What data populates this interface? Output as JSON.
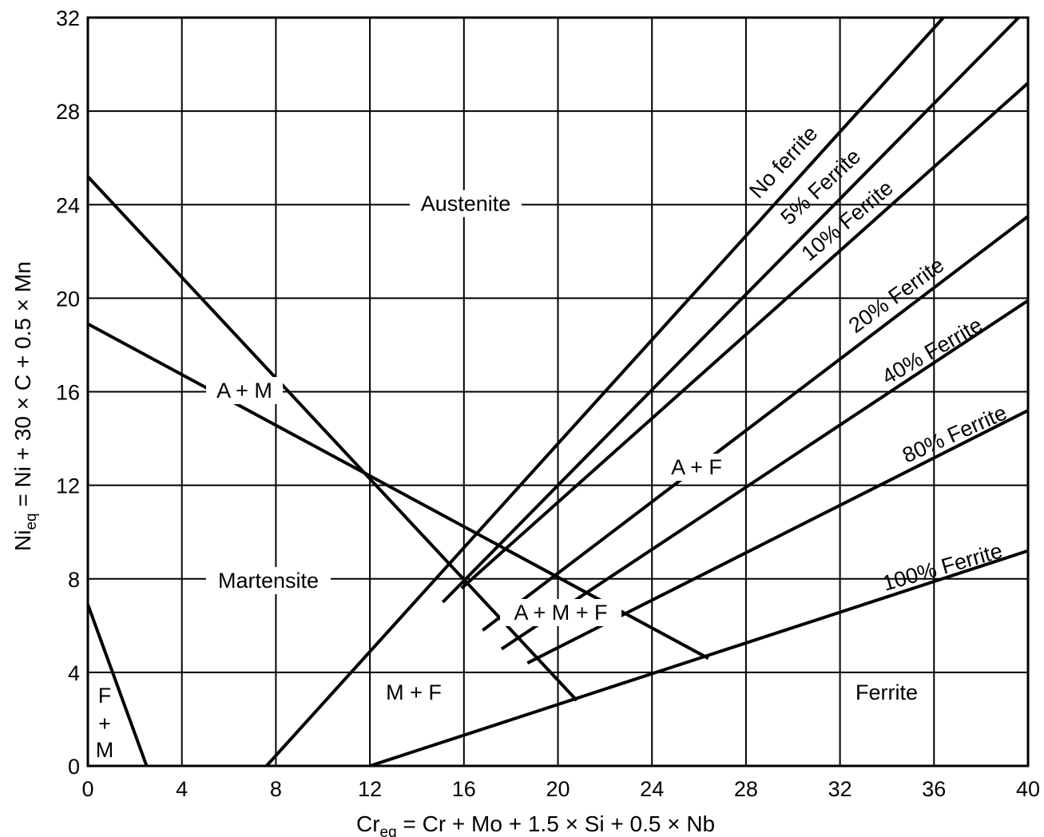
{
  "chart_data": {
    "type": "line",
    "title": "",
    "xlabel": {
      "main": "Cr",
      "sub": "eq",
      "rest": " = Cr + Mo + 1.5 × Si + 0.5 × Nb"
    },
    "ylabel": {
      "main": "Ni",
      "sub": "eq",
      "rest": " = Ni + 30 × C + 0.5 × Mn"
    },
    "xlim": [
      0,
      40
    ],
    "ylim": [
      0,
      32
    ],
    "xticks": [
      0,
      4,
      8,
      12,
      16,
      20,
      24,
      28,
      32,
      36,
      40
    ],
    "yticks": [
      0,
      4,
      8,
      12,
      16,
      20,
      24,
      28,
      32
    ],
    "grid": true,
    "series": [
      {
        "name": "No ferrite",
        "x": [
          7.6,
          36.4
        ],
        "y": [
          0,
          32
        ]
      },
      {
        "name": "5% Ferrite",
        "x": [
          15.1,
          39.6
        ],
        "y": [
          7.0,
          32
        ]
      },
      {
        "name": "10% Ferrite",
        "x": [
          15.9,
          40
        ],
        "y": [
          7.6,
          29.2
        ]
      },
      {
        "name": "20% Ferrite",
        "x": [
          16.8,
          40
        ],
        "y": [
          5.8,
          23.5
        ]
      },
      {
        "name": "40% Ferrite",
        "x": [
          17.6,
          40
        ],
        "y": [
          5.0,
          19.9
        ]
      },
      {
        "name": "80% Ferrite",
        "x": [
          18.7,
          40
        ],
        "y": [
          4.4,
          15.2
        ]
      },
      {
        "name": "100% Ferrite",
        "x": [
          12.0,
          40
        ],
        "y": [
          0,
          9.2
        ]
      },
      {
        "x": [
          0,
          20.8
        ],
        "y": [
          25.2,
          2.8
        ]
      },
      {
        "x": [
          0,
          26.4
        ],
        "y": [
          18.9,
          4.6
        ]
      },
      {
        "x": [
          0,
          2.5
        ],
        "y": [
          6.9,
          0
        ]
      }
    ],
    "regions": [
      "Austenite",
      "A + M",
      "Martensite",
      "A + F",
      "A + M + F",
      "M + F",
      "Ferrite",
      "F",
      "+",
      "M"
    ]
  }
}
